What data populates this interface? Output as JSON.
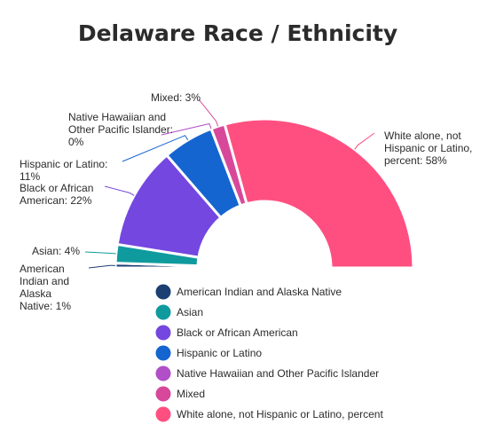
{
  "chart_data": {
    "type": "pie",
    "subtype": "semi-donut",
    "title": "Delaware Race / Ethnicity",
    "categories": [
      "American Indian and Alaska Native",
      "Asian",
      "Black or African American",
      "Hispanic or Latino",
      "Native Hawaiian and Other Pacific Islander",
      "Mixed",
      "White alone, not Hispanic or Latino, percent"
    ],
    "values": [
      1,
      4,
      22,
      11,
      0,
      3,
      58
    ],
    "unit": "%",
    "data_labels": [
      "American Indian and Alaska Native: 1%",
      "Asian: 4%",
      "Black or African American: 22%",
      "Hispanic or Latino: 11%",
      "Native Hawaiian and Other Pacific Islander: 0%",
      "Mixed: 3%",
      "White alone, not Hispanic or Latino, percent: 58%"
    ],
    "colors": [
      "#1b3f73",
      "#0f9a9e",
      "#7447e0",
      "#1565d0",
      "#b14fc8",
      "#d8489a",
      "#ff4f81"
    ],
    "legend": {
      "position": "bottom",
      "entries": [
        "American Indian and Alaska Native",
        "Asian",
        "Black or African American",
        "Hispanic or Latino",
        "Native Hawaiian and Other Pacific Islander",
        "Mixed",
        "White alone, not Hispanic or Latino, percent"
      ]
    }
  }
}
